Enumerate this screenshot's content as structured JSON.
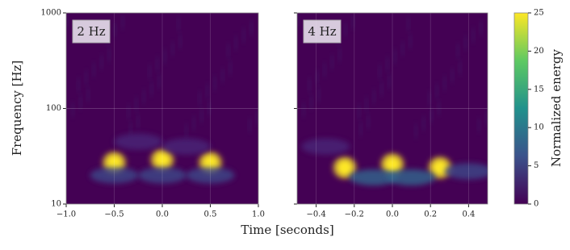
{
  "chart_data": [
    {
      "type": "heatmap",
      "annotation": "2 Hz",
      "ylabel": "Frequency [Hz]",
      "x": [
        -0.5,
        0.0,
        0.5,
        -0.5,
        0.0,
        0.5,
        -0.25,
        0.25
      ],
      "y": [
        27,
        29,
        27,
        20,
        20,
        20,
        45,
        40
      ],
      "values": [
        25,
        25,
        25,
        6,
        6,
        6,
        4,
        4
      ],
      "xlim": [
        -1,
        1
      ],
      "xticks": [
        {
          "value": -1,
          "label": "−1.0"
        },
        {
          "value": -0.5,
          "label": "−0.5"
        },
        {
          "value": 0,
          "label": "0.0"
        },
        {
          "value": 0.5,
          "label": "0.5"
        },
        {
          "value": 1,
          "label": "1.0"
        }
      ],
      "ylim": [
        10,
        1000
      ],
      "yticks": [
        10,
        100,
        1000
      ],
      "log_y": true,
      "grid": true
    },
    {
      "type": "heatmap",
      "annotation": "4 Hz",
      "x": [
        -0.25,
        0.0,
        0.25,
        -0.1,
        0.1,
        -0.35,
        0.4
      ],
      "y": [
        24,
        26,
        24,
        19,
        19,
        40,
        22
      ],
      "values": [
        25,
        25,
        25,
        7,
        7,
        4,
        6
      ],
      "xlim": [
        -0.5,
        0.5
      ],
      "xticks": [
        {
          "value": -0.4,
          "label": "−0.4"
        },
        {
          "value": -0.2,
          "label": "−0.2"
        },
        {
          "value": 0,
          "label": "0.0"
        },
        {
          "value": 0.2,
          "label": "0.2"
        },
        {
          "value": 0.4,
          "label": "0.4"
        }
      ],
      "ylim": [
        10,
        1000
      ],
      "yticks": [
        10,
        100,
        1000
      ],
      "log_y": true,
      "grid": true
    }
  ],
  "xlabel": "Time [seconds]",
  "colorbar": {
    "label": "Normalized energy",
    "lim": [
      0,
      25
    ],
    "ticks": [
      0,
      5,
      10,
      15,
      20,
      25
    ]
  }
}
